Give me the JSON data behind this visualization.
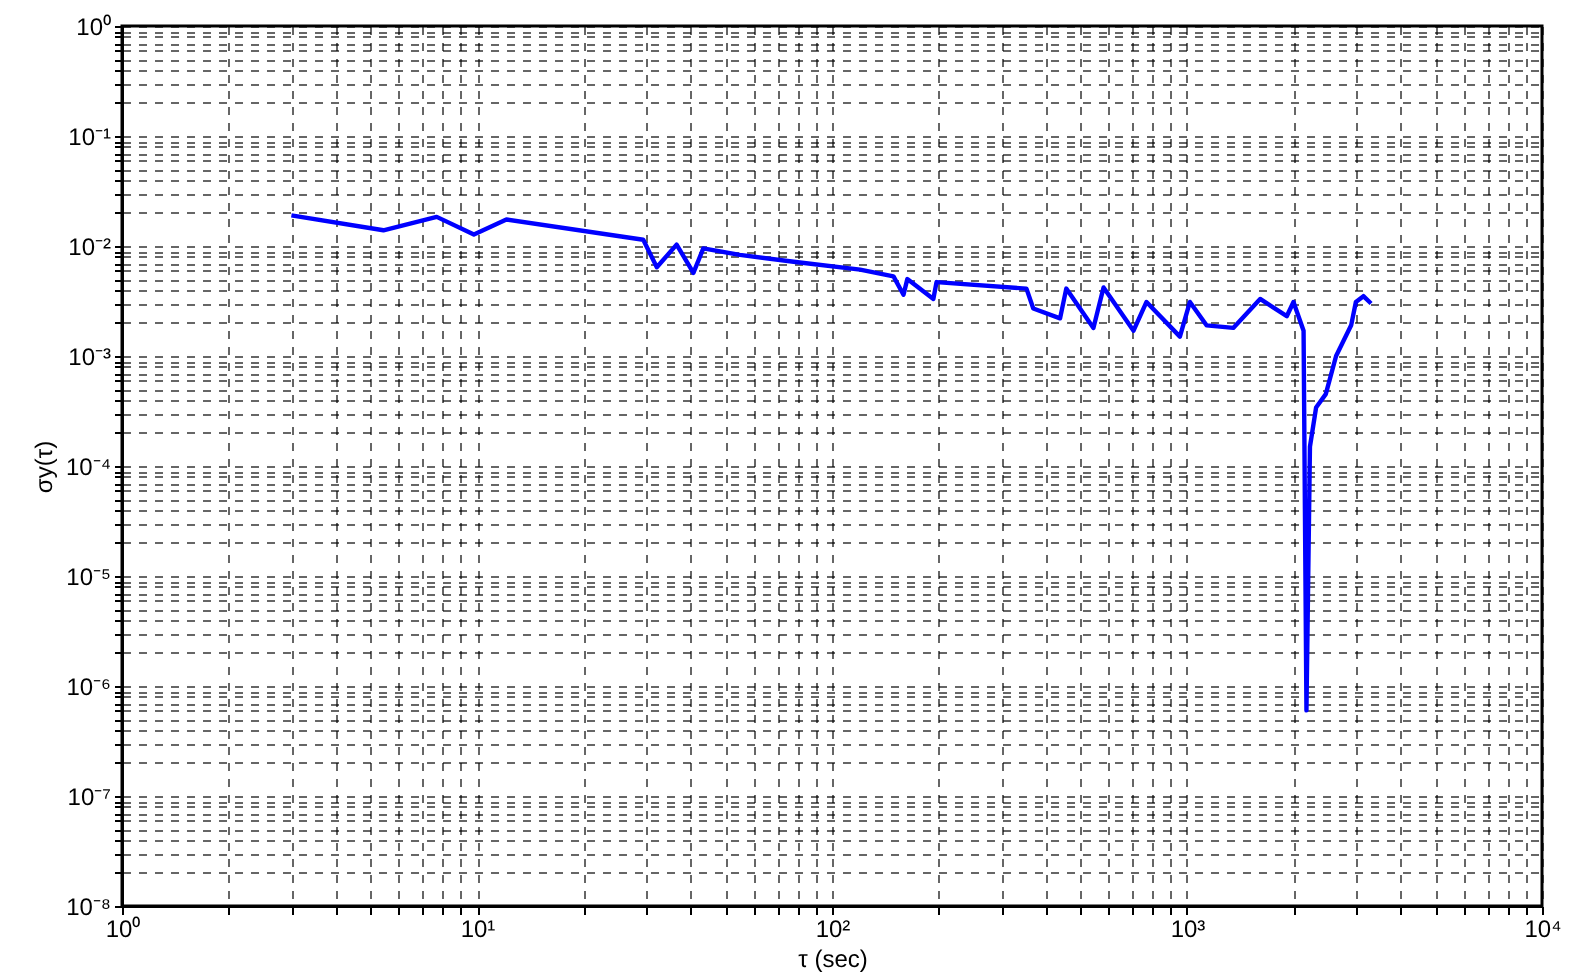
{
  "chart_data": {
    "type": "line",
    "xlabel": "τ (sec)",
    "ylabel": "σy(τ)",
    "log": "xy",
    "grid": true,
    "line_style": "solid",
    "marker": "none",
    "xlim": [
      1,
      10000
    ],
    "ylim": [
      1e-08,
      1
    ],
    "xticks": [
      {
        "value": 1,
        "label": "10⁰"
      },
      {
        "value": 2,
        "label": null
      },
      {
        "value": 3,
        "label": null
      },
      {
        "value": 4,
        "label": null
      },
      {
        "value": 5,
        "label": null
      },
      {
        "value": 6,
        "label": null
      },
      {
        "value": 7,
        "label": null
      },
      {
        "value": 8,
        "label": null
      },
      {
        "value": 9,
        "label": null
      },
      {
        "value": 10,
        "label": "10¹"
      },
      {
        "value": 20,
        "label": null
      },
      {
        "value": 30,
        "label": null
      },
      {
        "value": 40,
        "label": null
      },
      {
        "value": 50,
        "label": null
      },
      {
        "value": 60,
        "label": null
      },
      {
        "value": 70,
        "label": null
      },
      {
        "value": 80,
        "label": null
      },
      {
        "value": 90,
        "label": null
      },
      {
        "value": 100,
        "label": "10²"
      },
      {
        "value": 200,
        "label": null
      },
      {
        "value": 300,
        "label": null
      },
      {
        "value": 400,
        "label": null
      },
      {
        "value": 500,
        "label": null
      },
      {
        "value": 600,
        "label": null
      },
      {
        "value": 700,
        "label": null
      },
      {
        "value": 800,
        "label": null
      },
      {
        "value": 900,
        "label": null
      },
      {
        "value": 1000,
        "label": "10³"
      },
      {
        "value": 2000,
        "label": null
      },
      {
        "value": 3000,
        "label": null
      },
      {
        "value": 4000,
        "label": null
      },
      {
        "value": 5000,
        "label": null
      },
      {
        "value": 6000,
        "label": null
      },
      {
        "value": 7000,
        "label": null
      },
      {
        "value": 8000,
        "label": null
      },
      {
        "value": 9000,
        "label": null
      },
      {
        "value": 10000,
        "label": "10⁴"
      }
    ],
    "yticks": [
      {
        "value": 1e-08,
        "label": "10⁻⁸"
      },
      {
        "value": 2e-08,
        "label": null
      },
      {
        "value": 3e-08,
        "label": null
      },
      {
        "value": 4e-08,
        "label": null
      },
      {
        "value": 5e-08,
        "label": null
      },
      {
        "value": 6e-08,
        "label": null
      },
      {
        "value": 7e-08,
        "label": null
      },
      {
        "value": 8e-08,
        "label": null
      },
      {
        "value": 9e-08,
        "label": null
      },
      {
        "value": 1e-07,
        "label": "10⁻⁷"
      },
      {
        "value": 2e-07,
        "label": null
      },
      {
        "value": 3e-07,
        "label": null
      },
      {
        "value": 4e-07,
        "label": null
      },
      {
        "value": 5e-07,
        "label": null
      },
      {
        "value": 6e-07,
        "label": null
      },
      {
        "value": 7e-07,
        "label": null
      },
      {
        "value": 8e-07,
        "label": null
      },
      {
        "value": 9e-07,
        "label": null
      },
      {
        "value": 1e-06,
        "label": "10⁻⁶"
      },
      {
        "value": 2e-06,
        "label": null
      },
      {
        "value": 3e-06,
        "label": null
      },
      {
        "value": 4e-06,
        "label": null
      },
      {
        "value": 5e-06,
        "label": null
      },
      {
        "value": 6e-06,
        "label": null
      },
      {
        "value": 7e-06,
        "label": null
      },
      {
        "value": 8e-06,
        "label": null
      },
      {
        "value": 9e-06,
        "label": null
      },
      {
        "value": 1e-05,
        "label": "10⁻⁵"
      },
      {
        "value": 2e-05,
        "label": null
      },
      {
        "value": 3e-05,
        "label": null
      },
      {
        "value": 4e-05,
        "label": null
      },
      {
        "value": 5e-05,
        "label": null
      },
      {
        "value": 6e-05,
        "label": null
      },
      {
        "value": 7e-05,
        "label": null
      },
      {
        "value": 8e-05,
        "label": null
      },
      {
        "value": 9e-05,
        "label": null
      },
      {
        "value": 0.0001,
        "label": "10⁻⁴"
      },
      {
        "value": 0.0002,
        "label": null
      },
      {
        "value": 0.0003,
        "label": null
      },
      {
        "value": 0.0004,
        "label": null
      },
      {
        "value": 0.0005,
        "label": null
      },
      {
        "value": 0.0006,
        "label": null
      },
      {
        "value": 0.0007,
        "label": null
      },
      {
        "value": 0.0008,
        "label": null
      },
      {
        "value": 0.0009,
        "label": null
      },
      {
        "value": 0.001,
        "label": "10⁻³"
      },
      {
        "value": 0.002,
        "label": null
      },
      {
        "value": 0.003,
        "label": null
      },
      {
        "value": 0.004,
        "label": null
      },
      {
        "value": 0.005,
        "label": null
      },
      {
        "value": 0.006,
        "label": null
      },
      {
        "value": 0.007,
        "label": null
      },
      {
        "value": 0.008,
        "label": null
      },
      {
        "value": 0.009,
        "label": null
      },
      {
        "value": 0.01,
        "label": "10⁻²"
      },
      {
        "value": 0.02,
        "label": null
      },
      {
        "value": 0.03,
        "label": null
      },
      {
        "value": 0.04,
        "label": null
      },
      {
        "value": 0.05,
        "label": null
      },
      {
        "value": 0.06,
        "label": null
      },
      {
        "value": 0.07,
        "label": null
      },
      {
        "value": 0.08,
        "label": null
      },
      {
        "value": 0.09,
        "label": null
      },
      {
        "value": 0.1,
        "label": "10⁻¹"
      },
      {
        "value": 0.2,
        "label": null
      },
      {
        "value": 0.3,
        "label": null
      },
      {
        "value": 0.4,
        "label": null
      },
      {
        "value": 0.5,
        "label": null
      },
      {
        "value": 0.6,
        "label": null
      },
      {
        "value": 0.7,
        "label": null
      },
      {
        "value": 0.8,
        "label": null
      },
      {
        "value": 0.9,
        "label": null
      },
      {
        "value": 1,
        "label": "10⁰"
      }
    ],
    "series": [
      {
        "color": "#0000ff",
        "x": [
          3,
          5.45,
          7.7,
          9.8,
          12.1,
          29.4,
          32.1,
          36.5,
          40.7,
          43.4,
          55,
          78,
          120,
          149,
          159,
          163,
          193,
          197,
          353,
          369,
          439,
          457,
          545,
          582,
          707,
          769,
          955,
          1019,
          1135,
          1350,
          1607,
          1910,
          1995,
          2130,
          2170,
          2220,
          2310,
          2460,
          2630,
          2900,
          2990,
          3140,
          3300
        ],
        "values": [
          0.019,
          0.0139,
          0.0184,
          0.0127,
          0.0174,
          0.0114,
          0.0064,
          0.0103,
          0.0057,
          0.0095,
          0.0083,
          0.0072,
          0.0061,
          0.0053,
          0.0036,
          0.005,
          0.0033,
          0.0047,
          0.0041,
          0.0027,
          0.0022,
          0.0041,
          0.0018,
          0.0042,
          0.0017,
          0.0031,
          0.0015,
          0.0031,
          0.0019,
          0.0018,
          0.0033,
          0.0023,
          0.0031,
          0.0017,
          6e-07,
          0.00015,
          0.00034,
          0.00045,
          0.001,
          0.0019,
          0.0031,
          0.0035,
          0.003
        ]
      }
    ]
  }
}
